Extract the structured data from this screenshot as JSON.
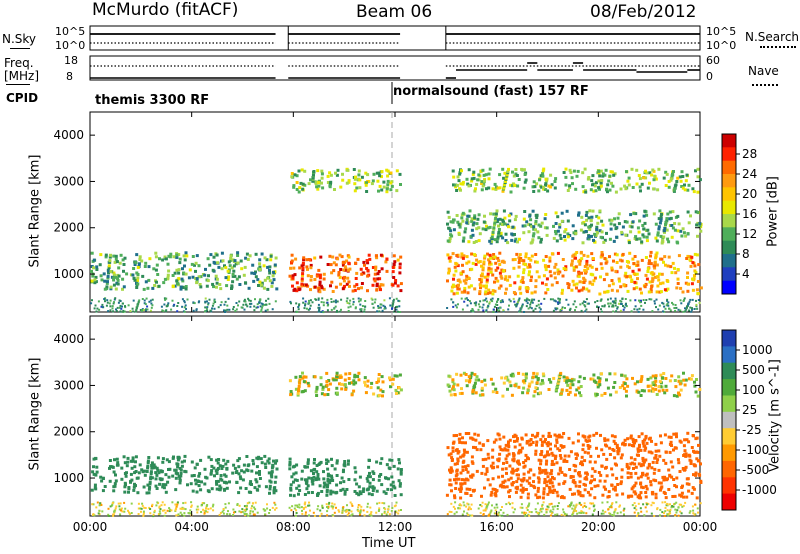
{
  "header": {
    "station": "McMurdo (fitACF)",
    "beam": "Beam 06",
    "date": "08/Feb/2012"
  },
  "strip_labels": {
    "nsky": "N.Sky",
    "nsearch": "N.Search",
    "freq_line1": "Freq.",
    "freq_line2": "[MHz]",
    "nave": "Nave",
    "cpid": "CPID",
    "nsky_ticks": [
      "10^5",
      "10^0"
    ],
    "nsearch_ticks": [
      "10^5",
      "10^0"
    ],
    "freq_ticks": [
      "18",
      "8"
    ],
    "nave_ticks": [
      "60",
      "0"
    ]
  },
  "cpid": {
    "first": "themis 3300 RF",
    "second": "normalsound (fast) 157 RF"
  },
  "axes": {
    "ylabel": "Slant Range [km]",
    "xlabel": "Time UT",
    "yticks": [
      "1000",
      "2000",
      "3000",
      "4000"
    ],
    "xticks": [
      "00:00",
      "04:00",
      "08:00",
      "12:00",
      "16:00",
      "20:00",
      "00:00"
    ]
  },
  "colorbars": {
    "power": {
      "title": "Power [dB]",
      "labels": [
        "28",
        "24",
        "20",
        "16",
        "12",
        "8",
        "4"
      ],
      "colors": [
        "#cc0000",
        "#ff2200",
        "#ff6a00",
        "#ff9a10",
        "#ffc400",
        "#e8e800",
        "#a8d84a",
        "#4fae5a",
        "#2e8b57",
        "#1f6f8b",
        "#1f3fbf",
        "#0000ff"
      ]
    },
    "velocity": {
      "title": "Velocity [m s^-1]",
      "labels": [
        "1000",
        "500",
        "100",
        "25",
        "-25",
        "-100",
        "-500",
        "-1000"
      ],
      "colors": [
        "#1f3fb0",
        "#2a6fc4",
        "#2e8b57",
        "#4faa3a",
        "#8fd04a",
        "#bfbfbf",
        "#ffcc33",
        "#ff9900",
        "#ff6600",
        "#ff3300",
        "#ee0000"
      ]
    }
  },
  "chart_data": [
    {
      "type": "heatmap",
      "title": "Power [dB]",
      "xlabel": "Time UT",
      "ylabel": "Slant Range [km]",
      "xlim": [
        0,
        24
      ],
      "ylim": [
        180,
        4500
      ],
      "x_unit": "hours UT",
      "data_gaps_hours": [
        [
          7.3,
          7.8
        ],
        [
          12.2,
          13.9
        ]
      ],
      "scatter_bands": [
        {
          "t": [
            0.0,
            7.3
          ],
          "range_km": [
            700,
            1500
          ],
          "power_db": 10
        },
        {
          "t": [
            7.8,
            12.2
          ],
          "range_km": [
            650,
            1450
          ],
          "power_db": 24
        },
        {
          "t": [
            14.0,
            24.0
          ],
          "range_km": [
            600,
            1500
          ],
          "power_db": 20
        },
        {
          "t": [
            14.0,
            24.0
          ],
          "range_km": [
            1700,
            2400
          ],
          "power_db": 10
        },
        {
          "t": [
            7.8,
            12.2
          ],
          "range_km": [
            2800,
            3300
          ],
          "power_db": 12
        },
        {
          "t": [
            14.0,
            24.0
          ],
          "range_km": [
            2800,
            3300
          ],
          "power_db": 12
        }
      ],
      "colorbar_ticks": [
        4,
        8,
        12,
        16,
        20,
        24,
        28
      ]
    },
    {
      "type": "heatmap",
      "title": "Velocity [m s^-1]",
      "xlabel": "Time UT",
      "ylabel": "Slant Range [km]",
      "xlim": [
        0,
        24
      ],
      "ylim": [
        180,
        4500
      ],
      "x_unit": "hours UT",
      "data_gaps_hours": [
        [
          7.3,
          7.8
        ],
        [
          12.2,
          13.9
        ]
      ],
      "scatter_bands": [
        {
          "t": [
            0.0,
            7.3
          ],
          "range_km": [
            700,
            1500
          ],
          "velocity_ms": 200
        },
        {
          "t": [
            7.8,
            12.2
          ],
          "range_km": [
            650,
            1450
          ],
          "velocity_ms": 300
        },
        {
          "t": [
            14.0,
            24.0
          ],
          "range_km": [
            600,
            2000
          ],
          "velocity_ms": -300
        },
        {
          "t": [
            7.8,
            12.2
          ],
          "range_km": [
            2800,
            3300
          ],
          "velocity_ms": 0
        },
        {
          "t": [
            14.0,
            24.0
          ],
          "range_km": [
            2800,
            3300
          ],
          "velocity_ms": 0
        }
      ],
      "colorbar_ticks": [
        -1000,
        -500,
        -100,
        -25,
        25,
        100,
        500,
        1000
      ]
    }
  ]
}
